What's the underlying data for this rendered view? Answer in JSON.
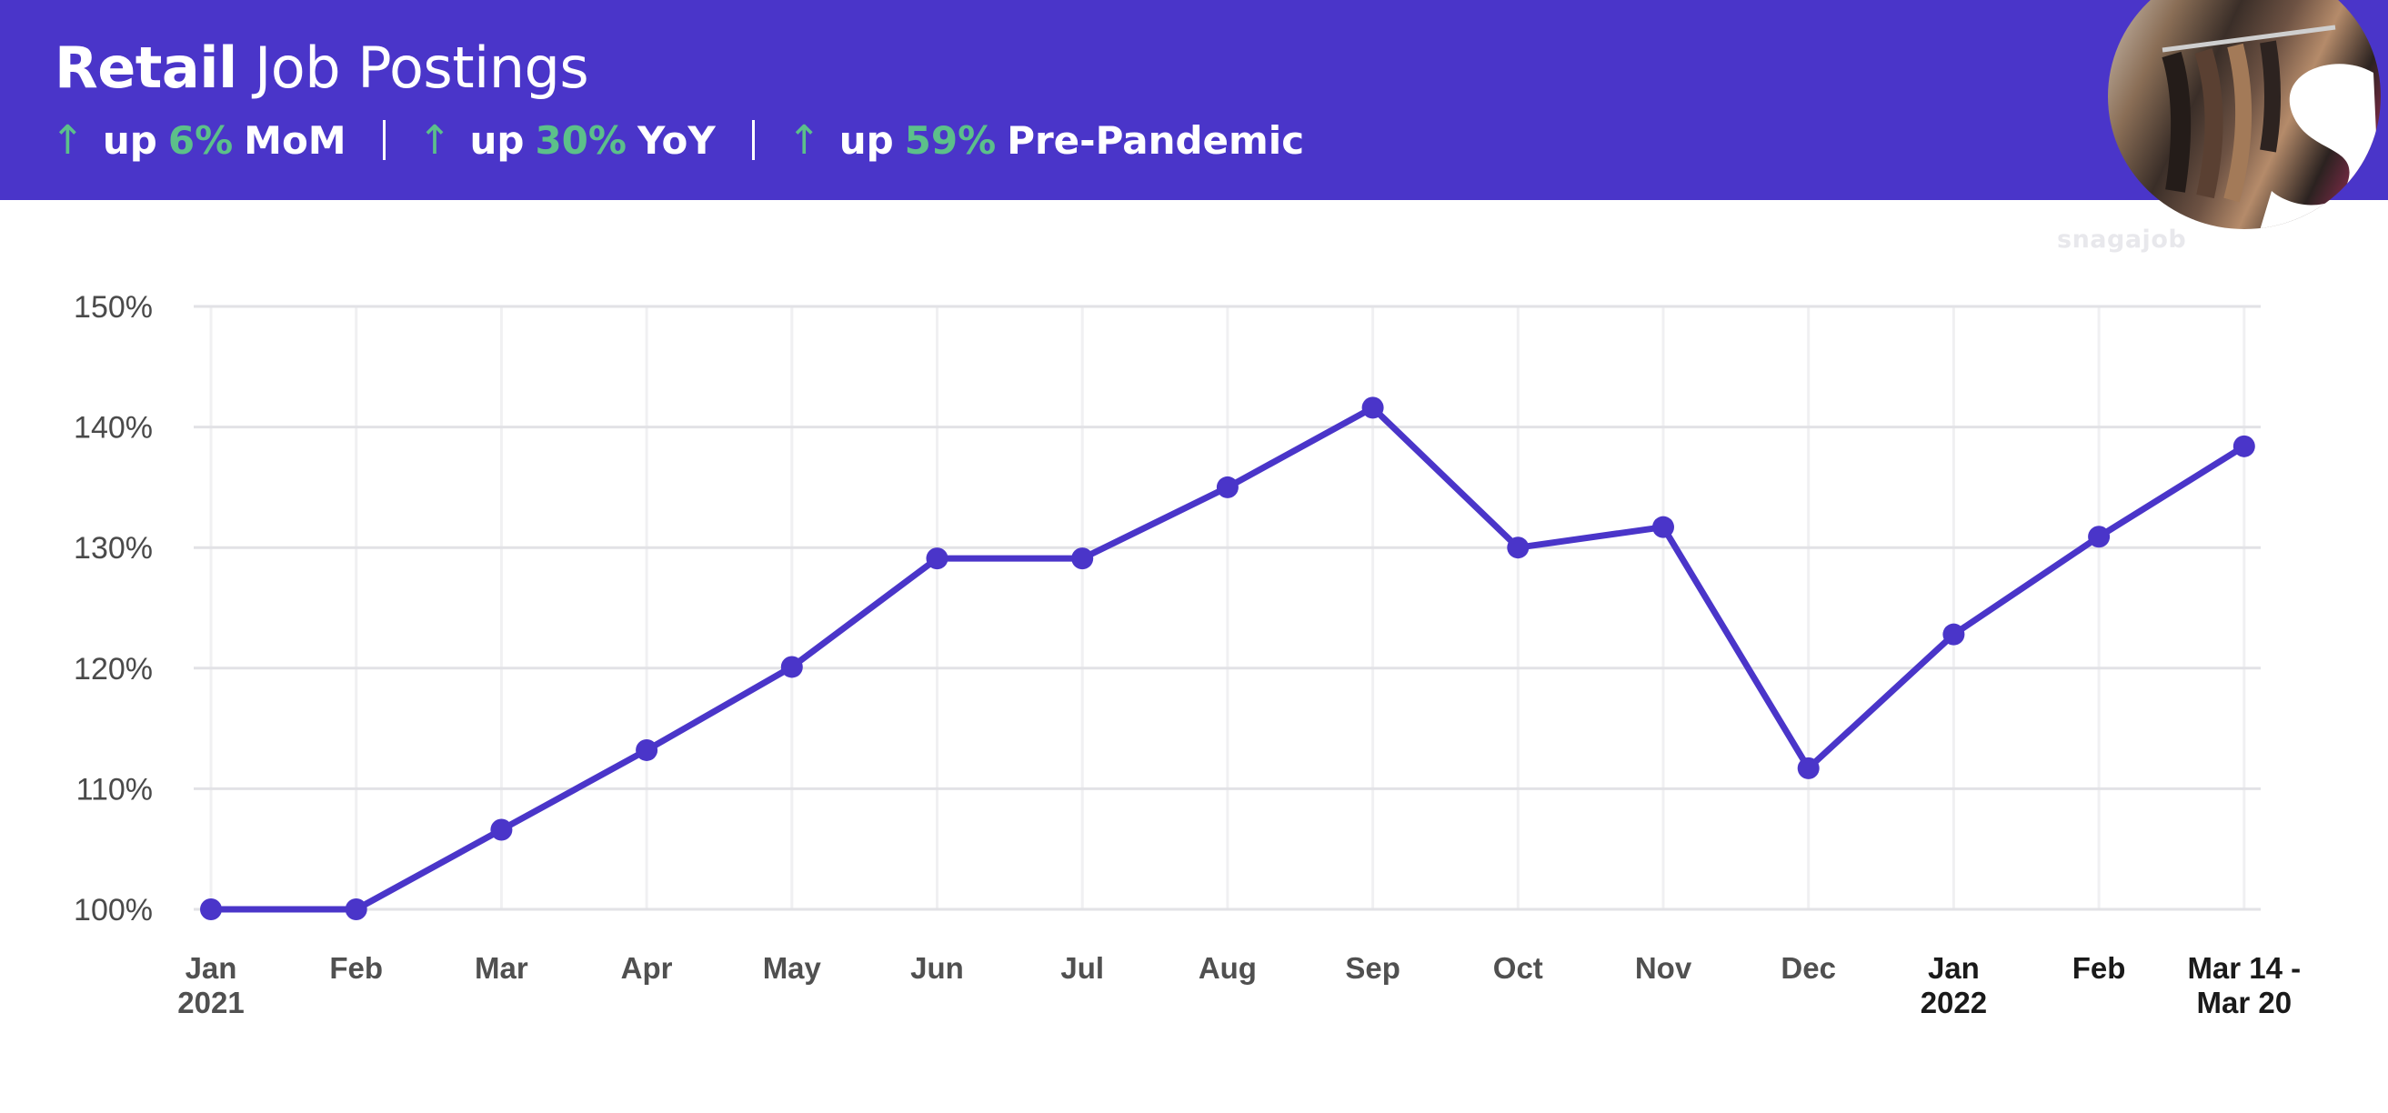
{
  "header": {
    "title_bold": "Retail",
    "title_rest": "Job Postings",
    "stats": [
      {
        "arrow": "↑",
        "prefix": "up",
        "pct": "6%",
        "label": "MoM"
      },
      {
        "arrow": "↑",
        "prefix": "up",
        "pct": "30%",
        "label": "YoY"
      },
      {
        "arrow": "↑",
        "prefix": "up",
        "pct": "59%",
        "label": "Pre-Pandemic"
      }
    ]
  },
  "brand": {
    "watermark": "snagajob",
    "logo_icon": "snagajob-s-logo-icon",
    "photo": "clothing-rack-photo"
  },
  "colors": {
    "banner": "#4a35c9",
    "line": "#4a35c9",
    "positive": "#5cc08a",
    "grid": "#e2e2e6"
  },
  "chart_data": {
    "type": "line",
    "title": "",
    "xlabel": "",
    "ylabel": "",
    "ylim": [
      100,
      150
    ],
    "yticks": [
      "100%",
      "110%",
      "120%",
      "130%",
      "140%",
      "150%"
    ],
    "ytick_values": [
      100,
      110,
      120,
      130,
      140,
      150
    ],
    "categories": [
      [
        "Jan",
        "2021"
      ],
      [
        "Feb"
      ],
      [
        "Mar"
      ],
      [
        "Apr"
      ],
      [
        "May"
      ],
      [
        "Jun"
      ],
      [
        "Jul"
      ],
      [
        "Aug"
      ],
      [
        "Sep"
      ],
      [
        "Oct"
      ],
      [
        "Nov"
      ],
      [
        "Dec"
      ],
      [
        "Jan",
        "2022"
      ],
      [
        "Feb"
      ],
      [
        "Mar 14 -",
        "Mar 20"
      ]
    ],
    "category_emphasis": [
      false,
      false,
      false,
      false,
      false,
      false,
      false,
      false,
      false,
      false,
      false,
      false,
      true,
      true,
      true
    ],
    "values": [
      100,
      100,
      106.6,
      113.2,
      120.1,
      129.1,
      129.1,
      135,
      141.6,
      130,
      131.7,
      111.7,
      122.8,
      130.9,
      138.4
    ],
    "grid": true,
    "legend": "none"
  }
}
